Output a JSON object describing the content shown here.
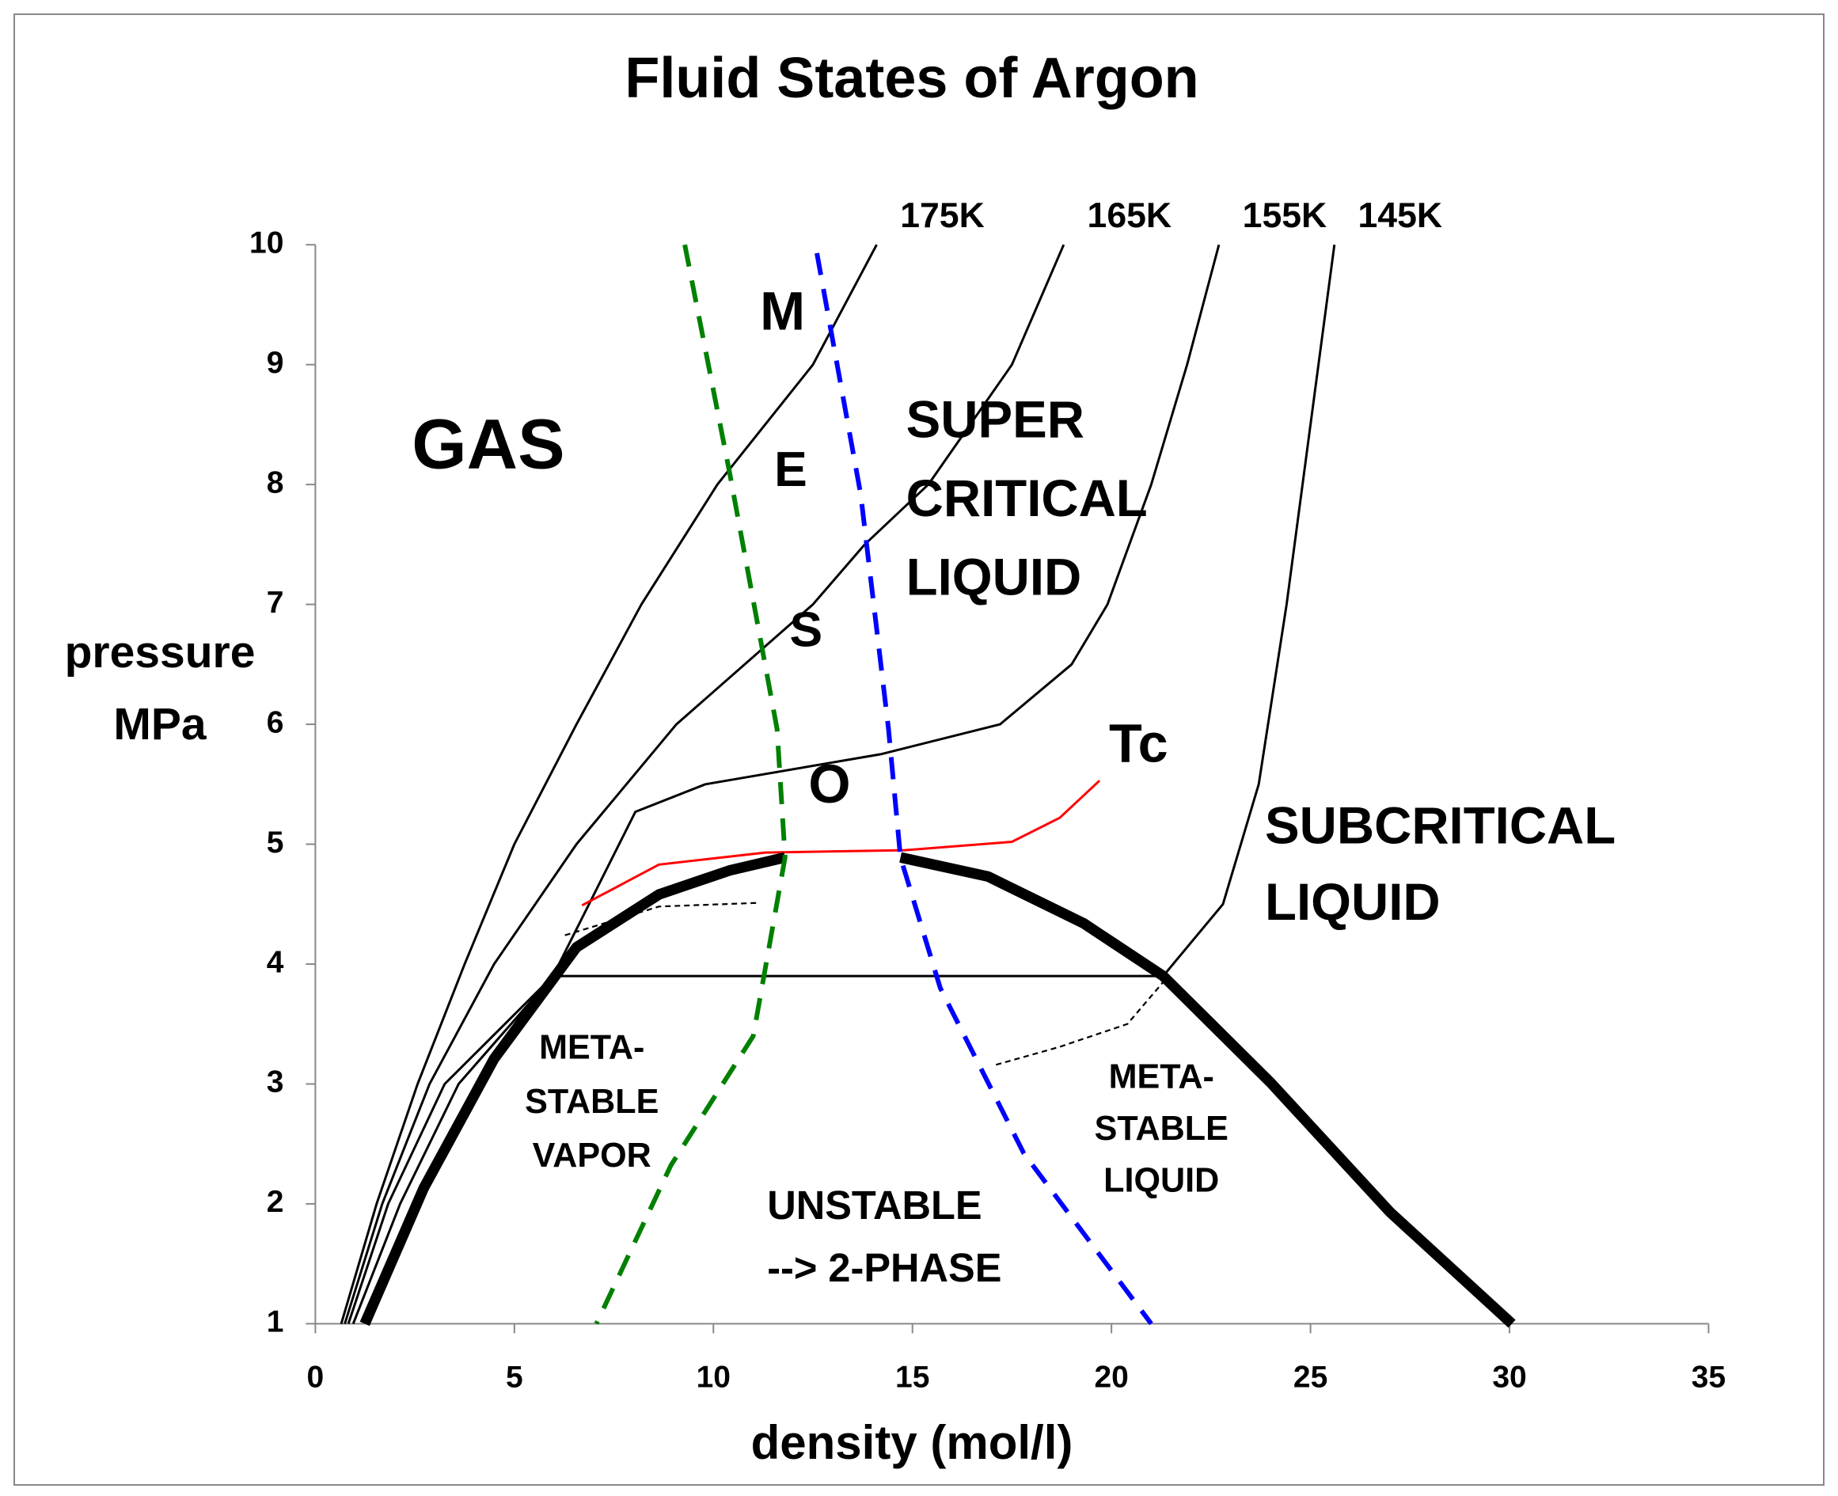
{
  "chart_data": {
    "type": "line",
    "title": "Fluid States of Argon",
    "xlabel": "density (mol/l)",
    "ylabel": [
      "pressure",
      "MPa"
    ],
    "xlim": [
      0,
      35
    ],
    "ylim": [
      1,
      10
    ],
    "xticks": [
      0,
      5,
      10,
      15,
      20,
      25,
      30,
      35
    ],
    "yticks": [
      1,
      2,
      3,
      4,
      5,
      6,
      7,
      8,
      9,
      10
    ],
    "grid": false,
    "series": [
      {
        "name": "175K",
        "color": "#000000",
        "linewidth": 2,
        "style": "solid",
        "x": [
          0.65,
          1.54,
          2.57,
          3.75,
          5.0,
          6.56,
          8.19,
          10.1,
          12.5,
          14.1
        ],
        "values": [
          1,
          2,
          3,
          4,
          5,
          6,
          7,
          8,
          9,
          10
        ]
      },
      {
        "name": "165K",
        "color": "#000000",
        "linewidth": 2,
        "style": "solid",
        "x": [
          0.74,
          1.68,
          2.87,
          4.49,
          6.56,
          9.07,
          12.5,
          13.8,
          15.4,
          17.5,
          18.8
        ],
        "values": [
          1,
          2,
          3,
          4,
          5,
          6,
          7,
          7.5,
          8,
          9,
          10
        ]
      },
      {
        "name": "155K",
        "color": "#000000",
        "linewidth": 2,
        "style": "solid",
        "x": [
          0.83,
          1.83,
          3.25,
          5.97,
          8.04,
          9.8,
          14.2,
          17.2,
          19.0,
          19.9,
          21.0,
          21.9,
          22.7
        ],
        "values": [
          1,
          2,
          3,
          3.9,
          5.27,
          5.5,
          5.75,
          6,
          6.5,
          7,
          8,
          9,
          10
        ]
      },
      {
        "name": "145K",
        "color": "#000000",
        "linewidth": 2,
        "style": "solid",
        "x": [
          0.95,
          2.13,
          3.6,
          5.97,
          21.3,
          22.8,
          23.7,
          24.4,
          25.0,
          25.6
        ],
        "values": [
          1,
          2,
          3,
          3.9,
          3.9,
          4.5,
          5.5,
          7,
          8.5,
          10
        ]
      },
      {
        "name": "Tc",
        "color": "#ff0000",
        "linewidth": 2,
        "style": "solid",
        "x": [
          6.7,
          8.63,
          11.3,
          14.8,
          17.5,
          18.7,
          19.7
        ],
        "values": [
          4.49,
          4.83,
          4.93,
          4.95,
          5.02,
          5.22,
          5.53
        ]
      },
      {
        "color": "#000000",
        "linewidth": 9,
        "style": "solid",
        "x": [
          1.24,
          2.72,
          4.49,
          6.56,
          8.63,
          10.4,
          11.8
        ],
        "values": [
          1,
          2.13,
          3.21,
          4.14,
          4.58,
          4.78,
          4.89
        ]
      },
      {
        "color": "#000000",
        "linewidth": 9,
        "style": "solid",
        "x": [
          14.7,
          16.9,
          19.3,
          21.3,
          24.0,
          27.0,
          30.06
        ],
        "values": [
          4.89,
          4.73,
          4.34,
          3.9,
          3.01,
          1.93,
          1
        ]
      },
      {
        "color": "#008000",
        "linewidth": 4,
        "style": "dashed",
        "x": [
          9.28,
          10.4,
          11.6,
          11.8,
          11.0,
          8.93,
          7.06
        ],
        "values": [
          10,
          8.11,
          5.96,
          4.89,
          3.4,
          2.32,
          1
        ]
      },
      {
        "color": "#0000ff",
        "linewidth": 4,
        "style": "dashed",
        "x": [
          12.6,
          13.7,
          14.4,
          14.7,
          15.7,
          17.8,
          21.0
        ],
        "values": [
          9.93,
          7.92,
          5.96,
          4.89,
          3.8,
          2.42,
          1
        ]
      },
      {
        "color": "#000000",
        "linewidth": 1.5,
        "style": "dotted",
        "x": [
          6.27,
          8.63,
          11.1
        ],
        "values": [
          4.24,
          4.48,
          4.51
        ]
      },
      {
        "color": "#000000",
        "linewidth": 1.5,
        "style": "dotted",
        "x": [
          17.1,
          18.7,
          20.4,
          21.3
        ],
        "values": [
          3.16,
          3.31,
          3.5,
          3.85
        ]
      }
    ],
    "annotations": [
      [
        "GAS"
      ],
      [
        "M"
      ],
      [
        "E"
      ],
      [
        "S"
      ],
      [
        "O"
      ],
      [
        "SUPER",
        "CRITICAL",
        "LIQUID"
      ],
      [
        "SUBCRITICAL",
        "LIQUID"
      ],
      [
        "META-",
        "STABLE",
        "VAPOR"
      ],
      [
        "META-",
        "STABLE",
        "LIQUID"
      ],
      [
        "UNSTABLE",
        "--> 2-PHASE"
      ]
    ]
  }
}
